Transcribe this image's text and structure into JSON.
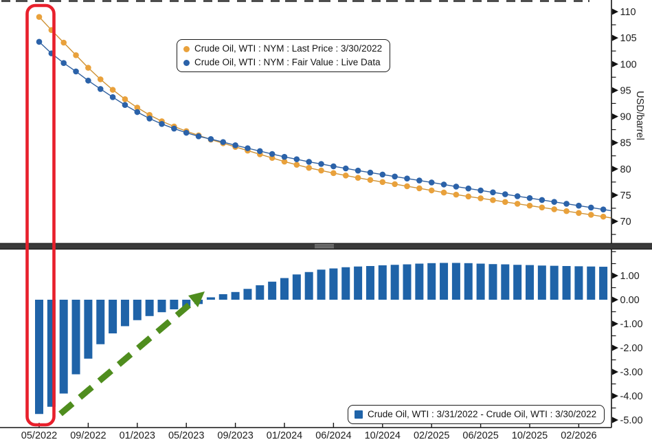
{
  "page": {
    "background": "#ffffff"
  },
  "cropped_title": {
    "note": "chart title cropped at top edge of screenshot"
  },
  "top_legend": {
    "items": [
      {
        "label": "Crude Oil, WTI : NYM : Last Price : 3/30/2022",
        "color": "#E9A13B",
        "marker": "circle"
      },
      {
        "label": "Crude Oil, WTI : NYM : Fair Value : Live Data",
        "color": "#2B62A9",
        "marker": "circle"
      }
    ]
  },
  "bottom_legend": {
    "items": [
      {
        "label": "Crude Oil, WTI : 3/31/2022 - Crude Oil, WTI : 3/30/2022",
        "color": "#1F63A8",
        "marker": "square"
      }
    ]
  },
  "axes": {
    "right_top": {
      "title": "USD/barrel",
      "tick_labels": [
        "110",
        "105",
        "100",
        "95",
        "90",
        "85",
        "80",
        "75",
        "70"
      ],
      "tick_values": [
        110,
        105,
        100,
        95,
        90,
        85,
        80,
        75,
        70
      ],
      "minor_tick_values": [
        107.5,
        102.5,
        97.5,
        92.5,
        87.5,
        82.5,
        77.5,
        72.5,
        67.5
      ]
    },
    "right_bottom": {
      "tick_labels": [
        "1.00",
        "0.00",
        "-1.00",
        "-2.00",
        "-3.00",
        "-4.00",
        "-5.00"
      ],
      "tick_values": [
        1,
        0,
        -1,
        -2,
        -3,
        -4,
        -5
      ],
      "minor_tick_values": [
        2.0,
        1.5,
        0.5,
        -0.5,
        -1.5,
        -2.5,
        -3.5,
        -4.5
      ]
    },
    "x": {
      "tick_labels": [
        "05/2022",
        "09/2022",
        "01/2023",
        "05/2023",
        "09/2023",
        "01/2024",
        "06/2024",
        "10/2024",
        "02/2025",
        "06/2025",
        "10/2025",
        "02/2026"
      ],
      "label_every_n_points": 4
    }
  },
  "chart_data": [
    {
      "type": "line",
      "panel": "top",
      "title": "",
      "ylabel": "USD/barrel",
      "ylim": [
        65.5,
        112
      ],
      "yticks": [
        70,
        75,
        80,
        85,
        90,
        95,
        100,
        105,
        110
      ],
      "n_points": 47,
      "x_tick_labels": [
        "05/2022",
        "09/2022",
        "01/2023",
        "05/2023",
        "09/2023",
        "01/2024",
        "06/2024",
        "10/2024",
        "02/2025",
        "06/2025",
        "10/2025",
        "02/2026"
      ],
      "series": [
        {
          "name": "Crude Oil, WTI : NYM : Last Price : 3/30/2022",
          "color": "#E9A13B",
          "marker": "circle",
          "values": [
            109.0,
            106.5,
            104.1,
            101.7,
            99.3,
            97.1,
            95.1,
            93.3,
            91.7,
            90.3,
            89.1,
            88.1,
            87.2,
            86.4,
            85.6,
            84.9,
            84.2,
            83.5,
            82.8,
            82.1,
            81.4,
            80.8,
            80.2,
            79.7,
            79.2,
            78.75,
            78.3,
            77.9,
            77.5,
            77.1,
            76.7,
            76.3,
            75.9,
            75.5,
            75.1,
            74.75,
            74.4,
            74.05,
            73.7,
            73.35,
            73.0,
            72.65,
            72.3,
            71.95,
            71.6,
            71.25,
            70.9
          ]
        },
        {
          "name": "Crude Oil, WTI : NYM : Fair Value : Live Data",
          "color": "#2B62A9",
          "marker": "circle",
          "values": [
            104.25,
            102.05,
            100.2,
            98.6,
            96.85,
            95.25,
            93.7,
            92.2,
            90.85,
            89.62,
            88.58,
            87.7,
            86.9,
            86.22,
            85.7,
            85.13,
            84.52,
            83.95,
            83.4,
            82.85,
            82.3,
            81.85,
            81.35,
            80.95,
            80.5,
            80.1,
            79.68,
            79.3,
            78.93,
            78.55,
            78.17,
            77.8,
            77.42,
            77.03,
            76.63,
            76.27,
            75.9,
            75.53,
            75.17,
            74.8,
            74.44,
            74.07,
            73.71,
            73.35,
            72.99,
            72.63,
            72.27
          ]
        }
      ]
    },
    {
      "type": "bar",
      "panel": "bottom",
      "ylim": [
        -5.31,
        2.09
      ],
      "yticks": [
        1,
        0,
        -1,
        -2,
        -3,
        -4,
        -5
      ],
      "n_points": 47,
      "series": [
        {
          "name": "Crude Oil, WTI : 3/31/2022 - Crude Oil, WTI : 3/30/2022",
          "color": "#1F63A8",
          "values": [
            -4.75,
            -4.45,
            -3.9,
            -3.1,
            -2.45,
            -1.85,
            -1.4,
            -1.1,
            -0.85,
            -0.68,
            -0.52,
            -0.4,
            -0.3,
            -0.18,
            0.1,
            0.23,
            0.32,
            0.45,
            0.6,
            0.75,
            0.9,
            1.05,
            1.15,
            1.25,
            1.3,
            1.35,
            1.38,
            1.4,
            1.43,
            1.45,
            1.47,
            1.5,
            1.52,
            1.53,
            1.53,
            1.52,
            1.5,
            1.48,
            1.47,
            1.45,
            1.44,
            1.42,
            1.41,
            1.4,
            1.39,
            1.38,
            1.37
          ]
        }
      ]
    }
  ],
  "annotations": {
    "highlight_box": {
      "shape": "rounded-rect",
      "color": "#E8202C"
    },
    "trend_arrow": {
      "shape": "dashed-arrow",
      "color": "#4F8D1E",
      "direction": "up-right"
    }
  },
  "divider": {
    "color": "#3A3A3A",
    "grip_color": "#A9A9A9"
  }
}
